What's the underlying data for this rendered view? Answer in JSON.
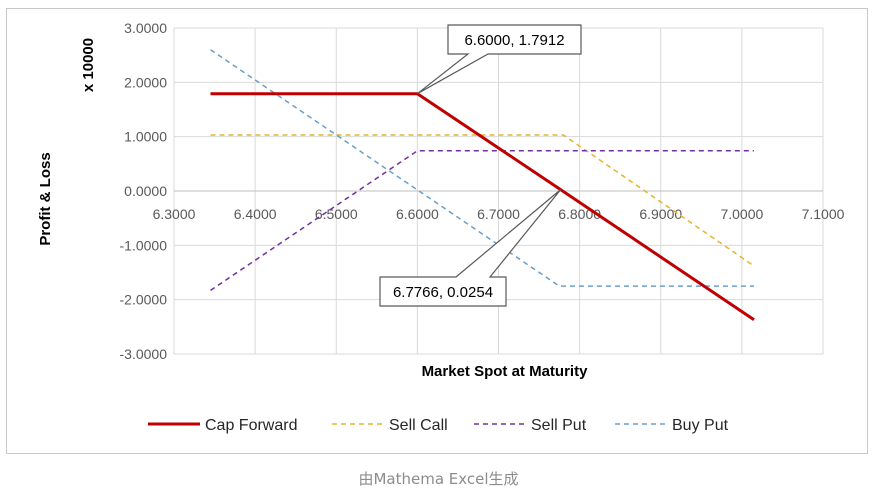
{
  "chart_data": {
    "type": "line",
    "title": "",
    "xlabel": "Market Spot at Maturity",
    "ylabel": "Profit & Loss",
    "yunit_label": "x 10000",
    "xlim": [
      6.3,
      7.1
    ],
    "ylim": [
      -3.0,
      3.0
    ],
    "xticks": [
      6.3,
      6.4,
      6.5,
      6.6,
      6.7,
      6.8,
      6.9,
      7.0,
      7.1
    ],
    "xtick_labels": [
      "6.3000",
      "6.4000",
      "6.5000",
      "6.6000",
      "6.7000",
      "6.8000",
      "6.9000",
      "7.0000",
      "7.1000"
    ],
    "yticks": [
      3,
      2,
      1,
      0,
      -1,
      -2,
      -3
    ],
    "ytick_labels": [
      "3.0000",
      "2.0000",
      "1.0000",
      "0.0000",
      "-1.0000",
      "-2.0000",
      "-3.0000"
    ],
    "grid": true,
    "legend_position": "bottom",
    "series": [
      {
        "name": "Cap Forward",
        "color": "#c00000",
        "style": "solid",
        "points": [
          [
            6.345,
            1.7912
          ],
          [
            6.6,
            1.7912
          ],
          [
            6.7766,
            0.0254
          ],
          [
            7.015,
            -2.37
          ]
        ]
      },
      {
        "name": "Sell Call",
        "color": "#e3b62a",
        "style": "dashed",
        "points": [
          [
            6.345,
            1.03
          ],
          [
            6.78,
            1.03
          ],
          [
            7.015,
            -1.38
          ]
        ]
      },
      {
        "name": "Sell Put",
        "color": "#7030a0",
        "style": "dashed",
        "points": [
          [
            6.345,
            -1.83
          ],
          [
            6.6,
            0.74
          ],
          [
            7.015,
            0.74
          ]
        ]
      },
      {
        "name": "Buy Put",
        "color": "#6a9fc9",
        "style": "dashed",
        "points": [
          [
            6.345,
            2.6
          ],
          [
            6.775,
            -1.75
          ],
          [
            7.015,
            -1.75
          ]
        ]
      }
    ],
    "annotations": [
      {
        "text": "6.6000, 1.7912",
        "x": 6.6,
        "y": 1.7912
      },
      {
        "text": "6.7766, 0.0254",
        "x": 6.7766,
        "y": 0.0254
      }
    ]
  },
  "caption": "由Mathema Excel生成"
}
